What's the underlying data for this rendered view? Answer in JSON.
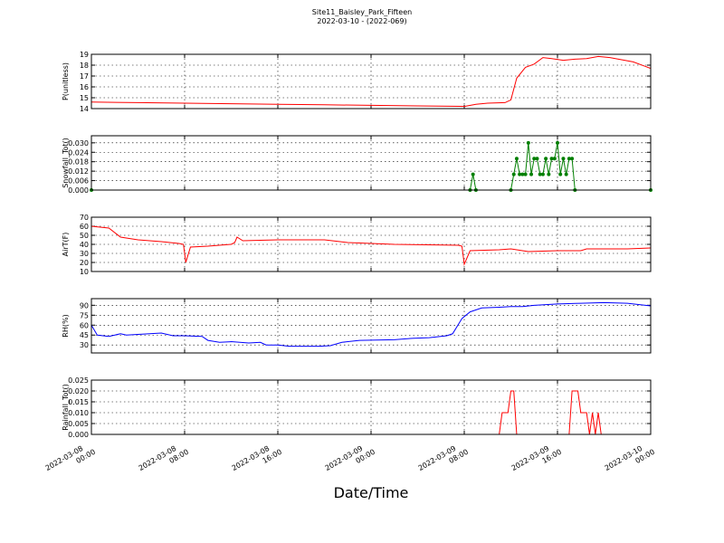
{
  "header": {
    "title": "Site11_Baisley_Park_Fifteen",
    "subtitle": "2022-03-10 - (2022-069)"
  },
  "chart_data": [
    {
      "type": "line",
      "ylabel": "P(unitless)",
      "color": "#ff0000",
      "grid": true,
      "xlim": [
        "2022-03-08 00:00",
        "2022-03-10 00:00"
      ],
      "xticks": [
        "2022-03-08 00:00",
        "2022-03-08 08:00",
        "2022-03-08 16:00",
        "2022-03-09 00:00",
        "2022-03-09 08:00",
        "2022-03-09 16:00",
        "2022-03-10 00:00"
      ],
      "ylim": [
        14,
        19
      ],
      "yticks": [
        14,
        15,
        16,
        17,
        18,
        19
      ],
      "x": [
        "2022-03-08 00:00",
        "2022-03-08 04:00",
        "2022-03-08 08:00",
        "2022-03-08 12:00",
        "2022-03-08 16:00",
        "2022-03-08 20:00",
        "2022-03-09 00:00",
        "2022-03-09 04:00",
        "2022-03-09 08:00",
        "2022-03-09 09:00",
        "2022-03-09 10:00",
        "2022-03-09 11:30",
        "2022-03-09 12:00",
        "2022-03-09 12:30",
        "2022-03-09 13:15",
        "2022-03-09 14:00",
        "2022-03-09 14:45",
        "2022-03-09 15:30",
        "2022-03-09 16:30",
        "2022-03-09 17:30",
        "2022-03-09 18:30",
        "2022-03-09 19:30",
        "2022-03-09 20:30",
        "2022-03-09 21:30",
        "2022-03-09 22:30",
        "2022-03-09 23:30",
        "2022-03-10 00:00"
      ],
      "values": [
        14.6,
        14.55,
        14.5,
        14.45,
        14.4,
        14.35,
        14.3,
        14.25,
        14.2,
        14.4,
        14.5,
        14.55,
        14.8,
        16.8,
        17.8,
        18.1,
        18.7,
        18.6,
        18.45,
        18.55,
        18.6,
        18.8,
        18.7,
        18.5,
        18.3,
        17.9,
        17.7
      ]
    },
    {
      "type": "line",
      "ylabel": "Snowfall_Tot()",
      "color": "#007f00",
      "marker": true,
      "grid": true,
      "xlim": [
        "2022-03-08 00:00",
        "2022-03-10 00:00"
      ],
      "xticks": [
        "2022-03-08 00:00",
        "2022-03-08 08:00",
        "2022-03-08 16:00",
        "2022-03-09 00:00",
        "2022-03-09 08:00",
        "2022-03-09 16:00",
        "2022-03-10 00:00"
      ],
      "ylim": [
        0,
        0.0345
      ],
      "yticks": [
        {
          "value": 0,
          "label": "0.000"
        },
        0.006,
        0.012,
        0.018,
        0.024,
        {
          "value": 0.03,
          "label": "0.030"
        }
      ],
      "x": [
        "2022-03-08 00:00",
        "2022-03-09 08:30",
        "2022-03-09 08:45",
        "2022-03-09 09:00",
        "2022-03-09 12:00",
        "2022-03-09 12:15",
        "2022-03-09 12:30",
        "2022-03-09 12:45",
        "2022-03-09 13:00",
        "2022-03-09 13:15",
        "2022-03-09 13:30",
        "2022-03-09 13:45",
        "2022-03-09 14:00",
        "2022-03-09 14:15",
        "2022-03-09 14:30",
        "2022-03-09 14:45",
        "2022-03-09 15:00",
        "2022-03-09 15:15",
        "2022-03-09 15:30",
        "2022-03-09 15:45",
        "2022-03-09 16:00",
        "2022-03-09 16:15",
        "2022-03-09 16:30",
        "2022-03-09 16:45",
        "2022-03-09 17:00",
        "2022-03-09 17:15",
        "2022-03-09 17:30",
        "2022-03-10 00:00"
      ],
      "values": [
        0,
        0,
        0.01,
        0,
        0,
        0.01,
        0.02,
        0.01,
        0.01,
        0.01,
        0.03,
        0.01,
        0.02,
        0.02,
        0.01,
        0.01,
        0.02,
        0.01,
        0.02,
        0.02,
        0.03,
        0.01,
        0.02,
        0.01,
        0.02,
        0.02,
        0,
        0
      ]
    },
    {
      "type": "line",
      "ylabel": "AirT(F)",
      "color": "#ff0000",
      "grid": true,
      "xlim": [
        "2022-03-08 00:00",
        "2022-03-10 00:00"
      ],
      "xticks": [
        "2022-03-08 00:00",
        "2022-03-08 08:00",
        "2022-03-08 16:00",
        "2022-03-09 00:00",
        "2022-03-09 08:00",
        "2022-03-09 16:00",
        "2022-03-10 00:00"
      ],
      "ylim": [
        10,
        70
      ],
      "yticks": [
        10,
        20,
        30,
        40,
        50,
        60,
        70
      ],
      "x": [
        "2022-03-08 00:00",
        "2022-03-08 01:30",
        "2022-03-08 02:30",
        "2022-03-08 04:00",
        "2022-03-08 06:00",
        "2022-03-08 07:30",
        "2022-03-08 07:54",
        "2022-03-08 08:06",
        "2022-03-08 08:30",
        "2022-03-08 10:00",
        "2022-03-08 12:00",
        "2022-03-08 12:18",
        "2022-03-08 12:30",
        "2022-03-08 13:00",
        "2022-03-08 16:00",
        "2022-03-08 20:00",
        "2022-03-08 22:00",
        "2022-03-09 02:00",
        "2022-03-09 07:30",
        "2022-03-09 07:48",
        "2022-03-09 08:00",
        "2022-03-09 08:30",
        "2022-03-09 11:00",
        "2022-03-09 12:00",
        "2022-03-09 13:30",
        "2022-03-09 16:00",
        "2022-03-09 18:00",
        "2022-03-09 18:30",
        "2022-03-09 22:00",
        "2022-03-10 00:00"
      ],
      "values": [
        60,
        58,
        48,
        45,
        43,
        41,
        40,
        20,
        37,
        38,
        40,
        42,
        48,
        44,
        45,
        45,
        42,
        40,
        39,
        38,
        18,
        33,
        34,
        35,
        32,
        33,
        33,
        35,
        35,
        36
      ]
    },
    {
      "type": "line",
      "ylabel": "RH(%)",
      "color": "#0000ff",
      "grid": true,
      "xlim": [
        "2022-03-08 00:00",
        "2022-03-10 00:00"
      ],
      "xticks": [
        "2022-03-08 00:00",
        "2022-03-08 08:00",
        "2022-03-08 16:00",
        "2022-03-09 00:00",
        "2022-03-09 08:00",
        "2022-03-09 16:00",
        "2022-03-10 00:00"
      ],
      "ylim": [
        18,
        100
      ],
      "yticks": [
        30,
        45,
        60,
        75,
        90
      ],
      "x": [
        "2022-03-08 00:00",
        "2022-03-08 00:30",
        "2022-03-08 01:30",
        "2022-03-08 02:30",
        "2022-03-08 03:00",
        "2022-03-08 06:00",
        "2022-03-08 07:00",
        "2022-03-08 08:00",
        "2022-03-08 09:30",
        "2022-03-08 10:00",
        "2022-03-08 11:00",
        "2022-03-08 12:00",
        "2022-03-08 13:30",
        "2022-03-08 14:30",
        "2022-03-08 15:00",
        "2022-03-08 16:00",
        "2022-03-08 17:00",
        "2022-03-08 19:30",
        "2022-03-08 20:30",
        "2022-03-08 21:30",
        "2022-03-08 23:00",
        "2022-03-09 02:00",
        "2022-03-09 03:30",
        "2022-03-09 05:00",
        "2022-03-09 06:30",
        "2022-03-09 07:00",
        "2022-03-09 07:48",
        "2022-03-09 08:30",
        "2022-03-09 09:30",
        "2022-03-09 11:00",
        "2022-03-09 12:00",
        "2022-03-09 13:00",
        "2022-03-09 14:00",
        "2022-03-09 16:00",
        "2022-03-09 18:00",
        "2022-03-09 20:00",
        "2022-03-09 22:00",
        "2022-03-10 00:00"
      ],
      "values": [
        60,
        45,
        43,
        47,
        45,
        48,
        44,
        44,
        43,
        37,
        34,
        35,
        33,
        34,
        30,
        30,
        28,
        28,
        29,
        34,
        37,
        38,
        40,
        41,
        44,
        47,
        70,
        80,
        86,
        87,
        88,
        88,
        90,
        92,
        93,
        94,
        93,
        89
      ]
    },
    {
      "type": "line",
      "ylabel": "Rainfall_Tot()",
      "xlabel": "Date/Time",
      "color": "#ff0000",
      "grid": true,
      "xlim": [
        "2022-03-08 00:00",
        "2022-03-10 00:00"
      ],
      "xticks": [
        "2022-03-08 00:00",
        "2022-03-08 08:00",
        "2022-03-08 16:00",
        "2022-03-09 00:00",
        "2022-03-09 08:00",
        "2022-03-09 16:00",
        "2022-03-10 00:00"
      ],
      "ylim": [
        0,
        0.025
      ],
      "yticks": [
        {
          "value": 0,
          "label": "0.000"
        },
        0.005,
        {
          "value": 0.01,
          "label": "0.010"
        },
        0.015,
        {
          "value": 0.02,
          "label": "0.020"
        },
        0.025
      ],
      "x": [
        "2022-03-08 00:00",
        "2022-03-09 11:00",
        "2022-03-09 11:15",
        "2022-03-09 11:45",
        "2022-03-09 12:00",
        "2022-03-09 12:15",
        "2022-03-09 12:30",
        "2022-03-09 17:00",
        "2022-03-09 17:15",
        "2022-03-09 17:45",
        "2022-03-09 18:00",
        "2022-03-09 18:30",
        "2022-03-09 18:45",
        "2022-03-09 19:00",
        "2022-03-09 19:15",
        "2022-03-09 19:30",
        "2022-03-09 19:45",
        "2022-03-09 20:00"
      ],
      "values": [
        0,
        0,
        0.01,
        0.01,
        0.02,
        0.02,
        0,
        0,
        0.02,
        0.02,
        0.01,
        0.01,
        0,
        0.01,
        0,
        0.01,
        0,
        0
      ]
    }
  ]
}
